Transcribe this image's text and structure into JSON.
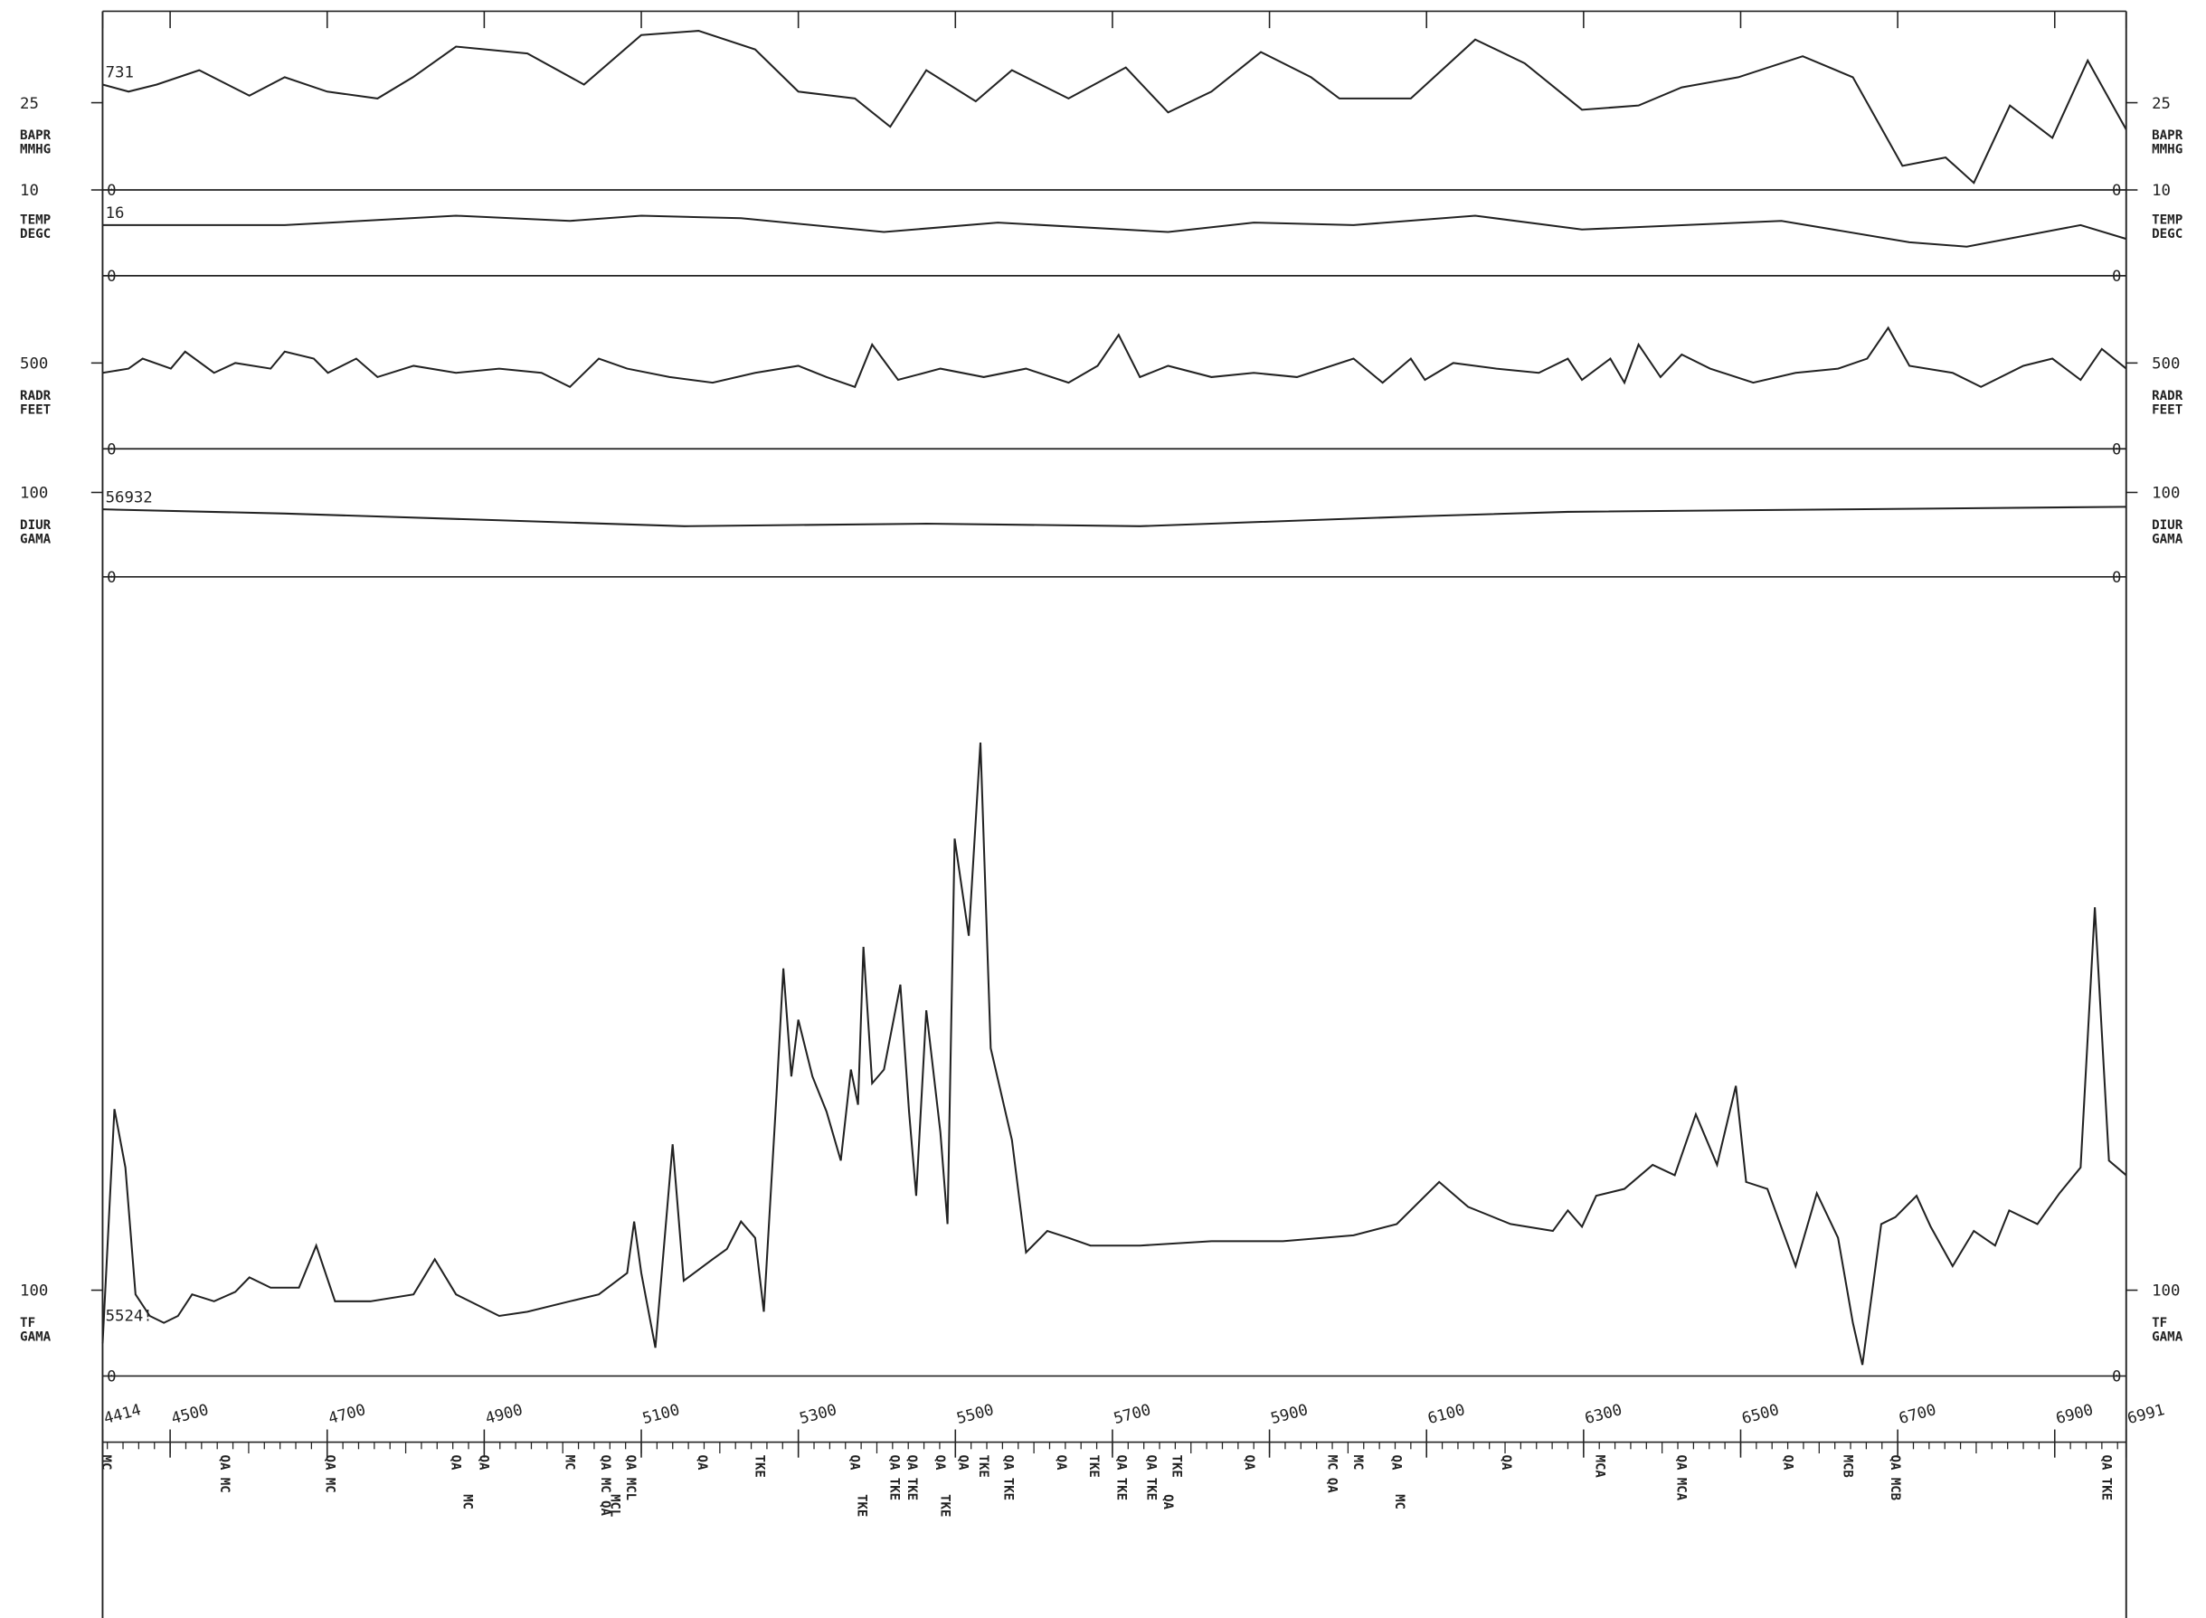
{
  "chart_data": {
    "type": "line",
    "color": "#222222",
    "xlim": [
      4414,
      6991
    ],
    "xticks": [
      4414,
      4500,
      4700,
      4900,
      5100,
      5300,
      5500,
      5700,
      5900,
      6100,
      6300,
      6500,
      6700,
      6900,
      6991
    ],
    "panels": [
      {
        "name": "BAPR",
        "unit": "MMHG",
        "scale": 25,
        "start_label": "731",
        "ylim": [
          0,
          50
        ],
        "x": [
          4414,
          4447,
          4483,
          4537,
          4601,
          4646,
          4700,
          4764,
          4809,
          4864,
          4955,
          5027,
          5100,
          5173,
          5245,
          5300,
          5372,
          5417,
          5463,
          5526,
          5572,
          5644,
          5717,
          5771,
          5826,
          5889,
          5953,
          5989,
          6080,
          6162,
          6225,
          6298,
          6370,
          6425,
          6497,
          6579,
          6643,
          6706,
          6761,
          6797,
          6843,
          6897,
          6942,
          6991
        ],
        "values": [
          30.2,
          28.2,
          30.2,
          34.3,
          27.0,
          32.3,
          28.2,
          26.2,
          32.3,
          41.1,
          39.1,
          30.2,
          44.4,
          45.6,
          40.3,
          28.2,
          26.2,
          18.1,
          34.3,
          25.4,
          34.3,
          26.2,
          35.1,
          22.2,
          28.2,
          39.5,
          32.3,
          26.2,
          26.2,
          43.1,
          36.3,
          23.0,
          24.2,
          29.4,
          32.3,
          38.3,
          32.3,
          6.9,
          9.3,
          2.0,
          24.2,
          14.9,
          37.1,
          17.3
        ]
      },
      {
        "name": "TEMP",
        "unit": "DEGC",
        "scale": 10,
        "start_label": "16",
        "ylim": [
          0,
          10
        ],
        "x": [
          4414,
          4646,
          4864,
          5009,
          5100,
          5227,
          5409,
          5554,
          5771,
          5880,
          6007,
          6162,
          6298,
          6552,
          6715,
          6788,
          6933,
          6991
        ],
        "values": [
          5.9,
          5.9,
          7.0,
          6.4,
          7.0,
          6.7,
          5.1,
          6.2,
          5.1,
          6.2,
          5.9,
          7.0,
          5.4,
          6.4,
          3.9,
          3.4,
          5.9,
          4.3
        ]
      },
      {
        "name": "RADR",
        "unit": "FEET",
        "scale": 500,
        "start_label": null,
        "ylim": [
          0,
          800
        ],
        "x": [
          4414,
          4447,
          4465,
          4501,
          4519,
          4556,
          4583,
          4628,
          4646,
          4683,
          4701,
          4737,
          4764,
          4810,
          4864,
          4919,
          4973,
          5009,
          5046,
          5082,
          5136,
          5191,
          5245,
          5300,
          5336,
          5372,
          5394,
          5427,
          5481,
          5536,
          5590,
          5644,
          5681,
          5708,
          5735,
          5771,
          5826,
          5880,
          5935,
          6007,
          6044,
          6080,
          6098,
          6134,
          6189,
          6243,
          6280,
          6298,
          6334,
          6352,
          6370,
          6398,
          6425,
          6461,
          6516,
          6570,
          6624,
          6661,
          6688,
          6715,
          6770,
          6806,
          6860,
          6897,
          6933,
          6960,
          6991
        ],
        "values": [
          443,
          467,
          525,
          467,
          566,
          443,
          500,
          467,
          566,
          525,
          443,
          525,
          418,
          484,
          443,
          467,
          443,
          361,
          525,
          467,
          418,
          385,
          443,
          484,
          418,
          361,
          607,
          402,
          467,
          418,
          467,
          385,
          484,
          664,
          418,
          484,
          418,
          443,
          418,
          525,
          385,
          525,
          402,
          500,
          467,
          443,
          525,
          402,
          525,
          385,
          607,
          418,
          549,
          467,
          385,
          443,
          467,
          525,
          705,
          484,
          443,
          361,
          484,
          525,
          402,
          582,
          467
        ]
      },
      {
        "name": "DIUR",
        "unit": "GAMA",
        "scale": 100,
        "start_label": "56932",
        "ylim": [
          0,
          100
        ],
        "x": [
          4414,
          4646,
          4919,
          5155,
          5463,
          5735,
          6098,
          6280,
          6643,
          6991
        ],
        "values": [
          80,
          75,
          67,
          60,
          63,
          60,
          72,
          77,
          80,
          83
        ]
      },
      {
        "name": "TF",
        "unit": "GAMA",
        "scale": 100,
        "start_label": "5524!",
        "ylim": [
          0,
          800
        ],
        "x": [
          4414,
          4429,
          4443,
          4456,
          4474,
          4492,
          4510,
          4528,
          4556,
          4583,
          4601,
          4628,
          4664,
          4686,
          4710,
          4755,
          4810,
          4837,
          4864,
          4919,
          4955,
          5009,
          5046,
          5082,
          5091,
          5100,
          5118,
          5140,
          5154,
          5191,
          5209,
          5227,
          5245,
          5256,
          5272,
          5281,
          5291,
          5300,
          5318,
          5336,
          5354,
          5367,
          5376,
          5383,
          5394,
          5409,
          5430,
          5441,
          5450,
          5463,
          5481,
          5490,
          5499,
          5517,
          5532,
          5545,
          5572,
          5590,
          5617,
          5644,
          5672,
          5735,
          5826,
          5917,
          6007,
          6062,
          6116,
          6153,
          6207,
          6261,
          6280,
          6298,
          6316,
          6352,
          6388,
          6416,
          6443,
          6470,
          6494,
          6507,
          6534,
          6570,
          6597,
          6624,
          6643,
          6655,
          6679,
          6697,
          6724,
          6742,
          6770,
          6797,
          6824,
          6842,
          6878,
          6906,
          6933,
          6951,
          6969,
          6991
        ],
        "values": [
          38,
          311,
          243,
          95,
          70,
          62,
          70,
          95,
          87,
          98,
          115,
          103,
          103,
          152,
          87,
          87,
          95,
          136,
          95,
          70,
          75,
          87,
          95,
          120,
          180,
          120,
          33,
          270,
          111,
          136,
          148,
          180,
          161,
          75,
          325,
          475,
          349,
          415,
          349,
          308,
          251,
          357,
          316,
          500,
          341,
          357,
          456,
          308,
          210,
          426,
          284,
          177,
          626,
          513,
          738,
          382,
          275,
          144,
          169,
          161,
          152,
          152,
          157,
          157,
          164,
          177,
          226,
          197,
          177,
          169,
          193,
          174,
          210,
          218,
          246,
          234,
          305,
          246,
          338,
          226,
          218,
          128,
          213,
          161,
          62,
          13,
          177,
          185,
          210,
          174,
          128,
          169,
          152,
          193,
          177,
          213,
          243,
          546,
          251,
          234
        ]
      }
    ],
    "annotations": [
      {
        "x": 4419,
        "label": "MC"
      },
      {
        "x": 4570,
        "label": "QA MC"
      },
      {
        "x": 4704,
        "label": "QA MC"
      },
      {
        "x": 4864,
        "label": "QA"
      },
      {
        "x": 4879,
        "label": "MC"
      },
      {
        "x": 4900,
        "label": "QA"
      },
      {
        "x": 5009,
        "label": "MC"
      },
      {
        "x": 5055,
        "label": "QA MC QA"
      },
      {
        "x": 5067,
        "label": "MCL"
      },
      {
        "x": 5087,
        "label": "QA MCL"
      },
      {
        "x": 5178,
        "label": "QA"
      },
      {
        "x": 5251,
        "label": "TKE"
      },
      {
        "x": 5372,
        "label": "QA"
      },
      {
        "x": 5381,
        "label": "TKE"
      },
      {
        "x": 5423,
        "label": "QA TKE"
      },
      {
        "x": 5445,
        "label": "QA TKE"
      },
      {
        "x": 5481,
        "label": "QA"
      },
      {
        "x": 5487,
        "label": "TKE"
      },
      {
        "x": 5510,
        "label": "QA"
      },
      {
        "x": 5536,
        "label": "TKE"
      },
      {
        "x": 5568,
        "label": "QA TKE"
      },
      {
        "x": 5635,
        "label": "QA"
      },
      {
        "x": 5677,
        "label": "TKE"
      },
      {
        "x": 5712,
        "label": "QA TKE"
      },
      {
        "x": 5750,
        "label": "QA TKE"
      },
      {
        "x": 5771,
        "label": "QA"
      },
      {
        "x": 5782,
        "label": "TKE"
      },
      {
        "x": 5875,
        "label": "QA"
      },
      {
        "x": 5980,
        "label": "MC QA"
      },
      {
        "x": 6013,
        "label": "MC"
      },
      {
        "x": 6062,
        "label": "QA"
      },
      {
        "x": 6066,
        "label": "MC"
      },
      {
        "x": 6202,
        "label": "QA"
      },
      {
        "x": 6321,
        "label": "MCA"
      },
      {
        "x": 6425,
        "label": "QA MCA"
      },
      {
        "x": 6561,
        "label": "QA"
      },
      {
        "x": 6637,
        "label": "MCB"
      },
      {
        "x": 6697,
        "label": "QA MCB"
      },
      {
        "x": 6966,
        "label": "QA TKE"
      }
    ]
  }
}
